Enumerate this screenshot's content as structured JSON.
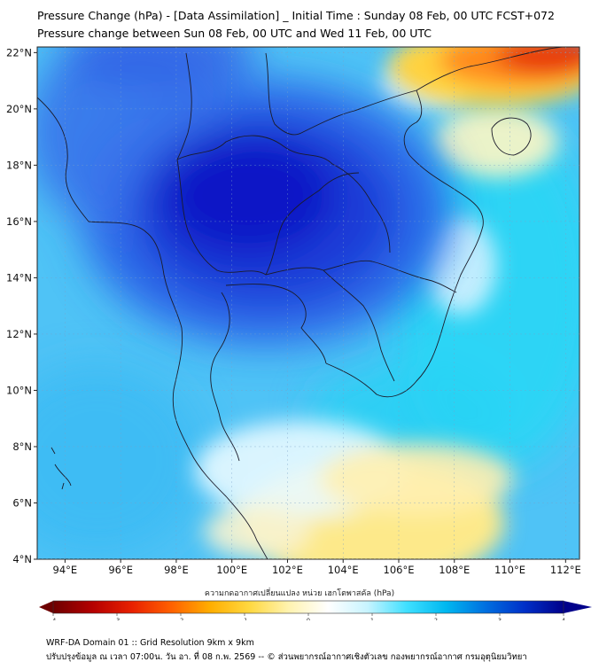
{
  "title_line1": "Pressure Change (hPa) - [Data Assimilation] _ Initial Time : Sunday 08 Feb, 00 UTC FCST+072",
  "title_line2": "Pressure change between Sun 08 Feb, 00 UTC and Wed 11 Feb, 00 UTC",
  "map": {
    "lon_range": [
      93,
      112.5
    ],
    "lat_range": [
      4,
      22.2
    ],
    "lat_ticks": [
      {
        "value": 22,
        "label": "22°N"
      },
      {
        "value": 20,
        "label": "20°N"
      },
      {
        "value": 18,
        "label": "18°N"
      },
      {
        "value": 16,
        "label": "16°N"
      },
      {
        "value": 14,
        "label": "14°N"
      },
      {
        "value": 12,
        "label": "12°N"
      },
      {
        "value": 10,
        "label": "10°N"
      },
      {
        "value": 8,
        "label": "8°N"
      },
      {
        "value": 6,
        "label": "6°N"
      },
      {
        "value": 4,
        "label": "4°N"
      }
    ],
    "lon_ticks": [
      {
        "value": 94,
        "label": "94°E"
      },
      {
        "value": 96,
        "label": "96°E"
      },
      {
        "value": 98,
        "label": "98°E"
      },
      {
        "value": 100,
        "label": "100°E"
      },
      {
        "value": 102,
        "label": "102°E"
      },
      {
        "value": 104,
        "label": "104°E"
      },
      {
        "value": 106,
        "label": "106°E"
      },
      {
        "value": 108,
        "label": "108°E"
      },
      {
        "value": 110,
        "label": "110°E"
      },
      {
        "value": 112,
        "label": "112°E"
      }
    ]
  },
  "field_features": [
    {
      "kind": "pressure-fall-max",
      "lon": 100.5,
      "lat": 16.5,
      "value": 4.2,
      "color": "#0a10c8"
    },
    {
      "kind": "pressure-fall",
      "lon": 97.5,
      "lat": 17.5,
      "value": 3.3,
      "color": "#2a4de6"
    },
    {
      "kind": "pressure-fall",
      "lon": 96.5,
      "lat": 20.5,
      "value": 3.0,
      "color": "#2f65e8"
    },
    {
      "kind": "pressure-fall",
      "lon": 96.5,
      "lat": 21.8,
      "value": 3.0,
      "color": "#3a6fe6"
    },
    {
      "kind": "pressure-rise-max",
      "lon": 111.5,
      "lat": 22.0,
      "value": -2.8,
      "color": "#e03010"
    },
    {
      "kind": "pressure-rise",
      "lon": 104.8,
      "lat": 4.8,
      "value": -1.0,
      "color": "#fde98a"
    },
    {
      "kind": "weak-change",
      "lon": 110.5,
      "lat": 18.5,
      "value": -0.6,
      "color": "#fff4b8"
    },
    {
      "kind": "weak-change",
      "lon": 107.8,
      "lat": 14.3,
      "value": -0.4,
      "color": "#fdf4c8"
    }
  ],
  "colorbar": {
    "min": -4,
    "max": 4,
    "ticks": [
      "-4",
      "-3",
      "-2",
      "-1",
      "0",
      "1",
      "2",
      "3",
      "4"
    ],
    "stops": [
      "#6e0000",
      "#b40000",
      "#e82000",
      "#ff6000",
      "#ffae00",
      "#ffd840",
      "#fff3b0",
      "#ffffff",
      "#c8f4ff",
      "#40e0ff",
      "#00b8f0",
      "#0070e0",
      "#0030c8",
      "#00008a"
    ],
    "label": "ความกดอากาศเปลี่ยนแปลง หน่วย เฮกโตพาสคัล (hPa)"
  },
  "footer_line1": "WRF-DA Domain 01 :: Grid Resolution 9km x 9km",
  "footer_line2": "ปรับปรุงข้อมูล ณ เวลา 07:00น. วัน อา. ที่ 08 ก.พ. 2569 -- © ส่วนพยากรณ์อากาศเชิงตัวเลข กองพยากรณ์อากาศ กรมอุตุนิยมวิทยา"
}
